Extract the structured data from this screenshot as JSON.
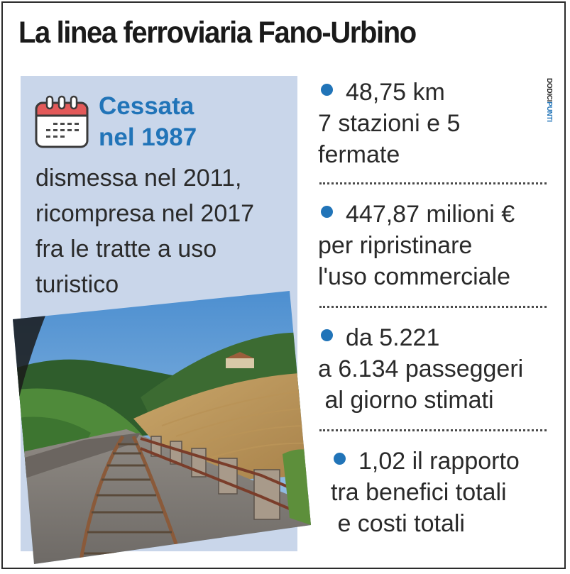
{
  "title": "La linea ferroviaria Fano-Urbino",
  "left_panel": {
    "highlight_lines": [
      "Cessata",
      "nel 1987"
    ],
    "body_lines": [
      "dismessa nel 2011,",
      "ricompresa nel 2017",
      "fra le tratte a uso",
      "turistico"
    ],
    "icon": "calendar-icon",
    "photo": "railway-track-photo"
  },
  "facts": [
    {
      "lines": [
        "48,75 km",
        "7 stazioni e 5",
        "fermate"
      ]
    },
    {
      "lines": [
        "447,87 milioni €",
        "per ripristinare",
        "l'uso commerciale"
      ]
    },
    {
      "lines": [
        "da 5.221",
        "a 6.134 passeggeri",
        " al giorno stimati"
      ]
    },
    {
      "lines": [
        "1,02 il rapporto",
        "tra benefici totali",
        " e costi totali"
      ]
    }
  ],
  "credit": "DODICIPUNTI",
  "colors": {
    "accent": "#2174b8",
    "panel": "#c9d6ea",
    "text": "#2a2a2a"
  }
}
